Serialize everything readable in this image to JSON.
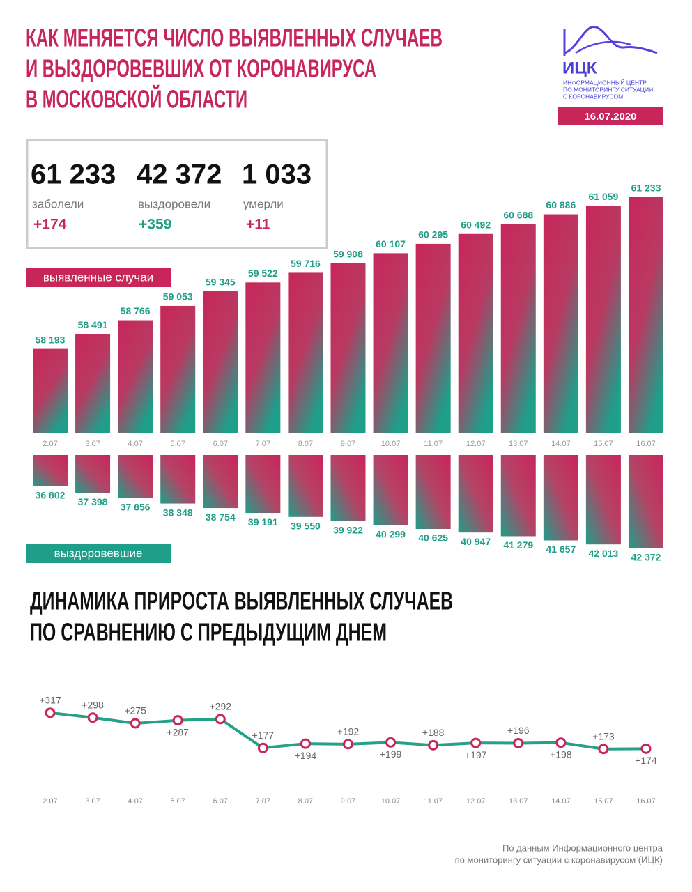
{
  "header": {
    "title": [
      "КАК МЕНЯЕТСЯ ЧИСЛО ВЫЯВЛЕННЫХ СЛУЧАЕВ",
      "И ВЫЗДОРОВЕВШИХ ОТ КОРОНАВИРУСА",
      "В МОСКОВСКОЙ ОБЛАСТИ"
    ],
    "logo": "ИЦК",
    "logo_caption": [
      "ИНФОРМАЦИОННЫЙ ЦЕНТР",
      "ПО МОНИТОРИНГУ СИТУАЦИИ",
      "С КОРОНАВИРУСОМ"
    ],
    "date": "16.07.2020"
  },
  "stats": [
    {
      "number": "61 233",
      "label": "заболели",
      "change": "+174"
    },
    {
      "number": "42 372",
      "label": "выздоровели",
      "change": "+359"
    },
    {
      "number": "1 033",
      "label": "умерли",
      "change": "+11"
    }
  ],
  "chart_data": [
    {
      "type": "bar",
      "label": "выявленные случаи",
      "direction": "up",
      "colors": [
        "#c8265a",
        "#1f9e89"
      ],
      "categories": [
        "2.07",
        "3.07",
        "4.07",
        "5.07",
        "6.07",
        "7.07",
        "8.07",
        "9.07",
        "10.07",
        "11.07",
        "12.07",
        "13.07",
        "14.07",
        "15.07",
        "16.07"
      ],
      "values": [
        58193,
        58491,
        58766,
        59053,
        59345,
        59522,
        59716,
        59908,
        60107,
        60295,
        60492,
        60688,
        60886,
        61059,
        61233
      ],
      "value_labels": [
        "58 193",
        "58 491",
        "58 766",
        "59 053",
        "59 345",
        "59 522",
        "59 716",
        "59 908",
        "60 107",
        "60 295",
        "60 492",
        "60 688",
        "60 886",
        "61 059",
        "61 233"
      ],
      "ylim": [
        56500,
        61500
      ]
    },
    {
      "type": "bar",
      "label": "выздоровевшие",
      "direction": "down",
      "colors": [
        "#1f9e89",
        "#c8265a"
      ],
      "values": [
        36802,
        37398,
        37856,
        38348,
        38754,
        39191,
        39550,
        39922,
        40299,
        40625,
        40947,
        41279,
        41657,
        42013,
        42372
      ],
      "value_labels": [
        "36 802",
        "37 398",
        "37 856",
        "38 348",
        "38 754",
        "39 191",
        "39 550",
        "39 922",
        "40 299",
        "40 625",
        "40 947",
        "41 279",
        "41 657",
        "42 013",
        "42 372"
      ],
      "ylim": [
        34000,
        42500
      ]
    },
    {
      "type": "line",
      "title": [
        "ДИНАМИКА ПРИРОСТА ВЫЯВЛЕННЫХ СЛУЧАЕВ",
        "ПО СРАВНЕНИЮ С ПРЕДЫДУЩИМ ДНЕМ"
      ],
      "color": "#27a08a",
      "marker_color": "#c8265a",
      "categories": [
        "2.07",
        "3.07",
        "4.07",
        "5.07",
        "6.07",
        "7.07",
        "8.07",
        "9.07",
        "10.07",
        "11.07",
        "12.07",
        "13.07",
        "14.07",
        "15.07",
        "16.07"
      ],
      "values": [
        317,
        298,
        275,
        287,
        292,
        177,
        194,
        192,
        199,
        188,
        197,
        196,
        198,
        173,
        174
      ],
      "value_labels": [
        "+317",
        "+298",
        "+275",
        "+287",
        "+292",
        "+177",
        "+194",
        "+192",
        "+199",
        "+188",
        "+197",
        "+196",
        "+198",
        "+173",
        "+174"
      ],
      "ylim": [
        150,
        350
      ]
    }
  ],
  "footer": [
    "По данным Информационного центра",
    "по мониторингу ситуации с коронавирусом (ИЦК)"
  ]
}
